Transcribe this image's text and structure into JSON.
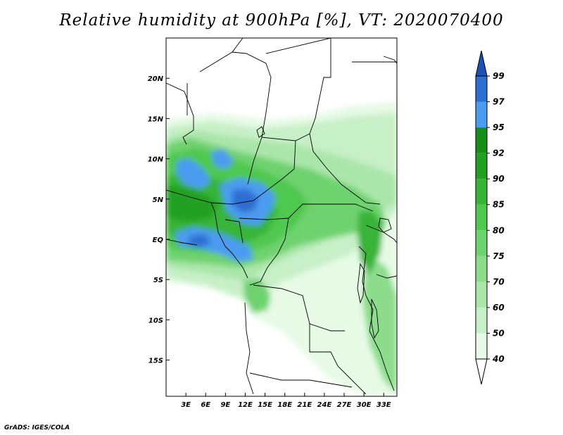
{
  "title": "Relative humidity at 900hPa [%], VT: 2020070400",
  "credit": "GrADS: IGES/COLA",
  "chart_data": {
    "type": "heatmap",
    "variable": "Relative humidity",
    "level": "900hPa",
    "units": "%",
    "valid_time": "2020070400",
    "lon_range": [
      0,
      35
    ],
    "lat_range": [
      -19.5,
      25
    ],
    "x_ticks": [
      {
        "value": 3,
        "label": "3E"
      },
      {
        "value": 6,
        "label": "6E"
      },
      {
        "value": 9,
        "label": "9E"
      },
      {
        "value": 12,
        "label": "12E"
      },
      {
        "value": 15,
        "label": "15E"
      },
      {
        "value": 18,
        "label": "18E"
      },
      {
        "value": 21,
        "label": "21E"
      },
      {
        "value": 24,
        "label": "24E"
      },
      {
        "value": 27,
        "label": "27E"
      },
      {
        "value": 30,
        "label": "30E"
      },
      {
        "value": 33,
        "label": "33E"
      }
    ],
    "y_ticks": [
      {
        "value": 20,
        "label": "20N"
      },
      {
        "value": 15,
        "label": "15N"
      },
      {
        "value": 10,
        "label": "10N"
      },
      {
        "value": 5,
        "label": "5N"
      },
      {
        "value": 0,
        "label": "EQ"
      },
      {
        "value": -5,
        "label": "5S"
      },
      {
        "value": -10,
        "label": "10S"
      },
      {
        "value": -15,
        "label": "15S"
      }
    ],
    "colorbar": {
      "levels": [
        40,
        50,
        60,
        70,
        75,
        80,
        85,
        90,
        92,
        95,
        97,
        99
      ],
      "labels": [
        "40",
        "50",
        "60",
        "70",
        "75",
        "80",
        "85",
        "90",
        "92",
        "95",
        "97",
        "99"
      ],
      "colors": [
        "#ffffff",
        "#e6fae6",
        "#c8f0c8",
        "#aae6aa",
        "#8cdc8c",
        "#6ed26e",
        "#50c850",
        "#37b437",
        "#23a023",
        "#198c19",
        "#4b9bf0",
        "#2d6ed2",
        "#1e50b4"
      ]
    }
  }
}
